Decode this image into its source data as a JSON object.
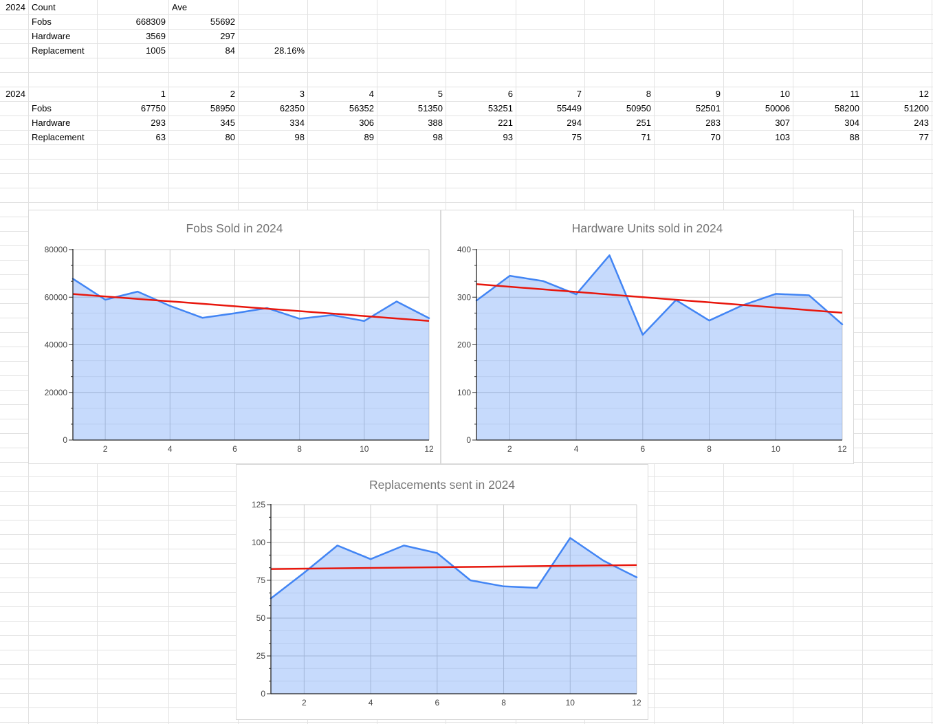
{
  "sheet": {
    "summary": {
      "year_label": "2024",
      "count_header": "Count",
      "ave_header": "Ave",
      "rows": [
        {
          "label": "Fobs",
          "count": "668309",
          "ave": "55692",
          "pct": ""
        },
        {
          "label": "Hardware",
          "count": "3569",
          "ave": "297",
          "pct": ""
        },
        {
          "label": "Replacement",
          "count": "1005",
          "ave": "84",
          "pct": "28.16%"
        }
      ]
    },
    "monthly": {
      "year_label": "2024",
      "months": [
        "1",
        "2",
        "3",
        "4",
        "5",
        "6",
        "7",
        "8",
        "9",
        "10",
        "11",
        "12"
      ],
      "rows": [
        {
          "label": "Fobs",
          "values": [
            67750,
            58950,
            62350,
            56352,
            51350,
            53251,
            55449,
            50950,
            52501,
            50006,
            58200,
            51200
          ]
        },
        {
          "label": "Hardware",
          "values": [
            293,
            345,
            334,
            306,
            388,
            221,
            294,
            251,
            283,
            307,
            304,
            243
          ]
        },
        {
          "label": "Replacement",
          "values": [
            63,
            80,
            98,
            89,
            98,
            93,
            75,
            71,
            70,
            103,
            88,
            77
          ]
        }
      ]
    }
  },
  "chart_data": [
    {
      "type": "area",
      "title": "Fobs Sold in 2024",
      "x": [
        1,
        2,
        3,
        4,
        5,
        6,
        7,
        8,
        9,
        10,
        11,
        12
      ],
      "series": [
        {
          "name": "Fobs",
          "values": [
            67750,
            58950,
            62350,
            56352,
            51350,
            53251,
            55449,
            50950,
            52501,
            50006,
            58200,
            51200
          ]
        }
      ],
      "trendline": {
        "type": "linear",
        "color": "#e8170d"
      },
      "xlabel": "",
      "ylabel": "",
      "xlim": [
        1,
        12
      ],
      "ylim": [
        0,
        80000
      ],
      "yticks": [
        0,
        20000,
        40000,
        60000,
        80000
      ],
      "xticks": [
        2,
        4,
        6,
        8,
        10,
        12
      ],
      "legend": "none",
      "grid": true,
      "colors": {
        "line": "#4285f4",
        "fill_opacity": 0.3,
        "trend": "#e8170d"
      }
    },
    {
      "type": "area",
      "title": "Hardware Units sold in 2024",
      "x": [
        1,
        2,
        3,
        4,
        5,
        6,
        7,
        8,
        9,
        10,
        11,
        12
      ],
      "series": [
        {
          "name": "Hardware",
          "values": [
            293,
            345,
            334,
            306,
            388,
            221,
            294,
            251,
            283,
            307,
            304,
            243
          ]
        }
      ],
      "trendline": {
        "type": "linear",
        "color": "#e8170d"
      },
      "xlabel": "",
      "ylabel": "",
      "xlim": [
        1,
        12
      ],
      "ylim": [
        0,
        400
      ],
      "yticks": [
        0,
        100,
        200,
        300,
        400
      ],
      "xticks": [
        2,
        4,
        6,
        8,
        10,
        12
      ],
      "legend": "none",
      "grid": true,
      "colors": {
        "line": "#4285f4",
        "fill_opacity": 0.3,
        "trend": "#e8170d"
      }
    },
    {
      "type": "area",
      "title": "Replacements sent in 2024",
      "x": [
        1,
        2,
        3,
        4,
        5,
        6,
        7,
        8,
        9,
        10,
        11,
        12
      ],
      "series": [
        {
          "name": "Replacement",
          "values": [
            63,
            80,
            98,
            89,
            98,
            93,
            75,
            71,
            70,
            103,
            88,
            77
          ]
        }
      ],
      "trendline": {
        "type": "linear",
        "color": "#e8170d"
      },
      "xlabel": "",
      "ylabel": "",
      "xlim": [
        1,
        12
      ],
      "ylim": [
        0,
        125
      ],
      "yticks": [
        0,
        25,
        50,
        75,
        100,
        125
      ],
      "xticks": [
        2,
        4,
        6,
        8,
        10,
        12
      ],
      "legend": "none",
      "grid": true,
      "colors": {
        "line": "#4285f4",
        "fill_opacity": 0.3,
        "trend": "#e8170d"
      }
    }
  ]
}
